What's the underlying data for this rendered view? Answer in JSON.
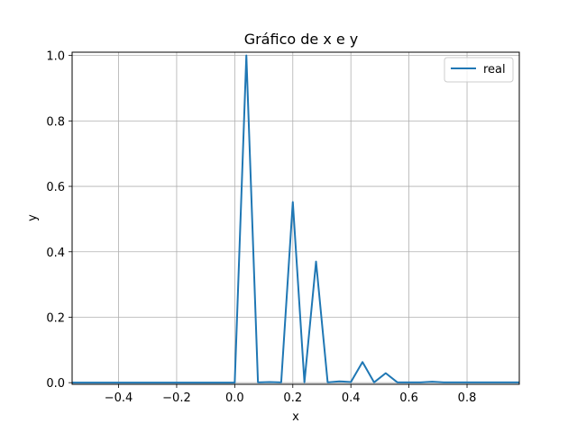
{
  "chart_data": {
    "type": "line",
    "title": "Gráfico de x e y",
    "xlabel": "x",
    "ylabel": "y",
    "xlim": [
      -0.56,
      0.98
    ],
    "ylim": [
      -0.005,
      1.01
    ],
    "x_ticks": [
      -0.4,
      -0.2,
      0.0,
      0.2,
      0.4,
      0.6,
      0.8
    ],
    "x_tick_labels": [
      "−0.4",
      "−0.2",
      "0.0",
      "0.2",
      "0.4",
      "0.6",
      "0.8"
    ],
    "y_ticks": [
      0.0,
      0.2,
      0.4,
      0.6,
      0.8,
      1.0
    ],
    "y_tick_labels": [
      "0.0",
      "0.2",
      "0.4",
      "0.6",
      "0.8",
      "1.0"
    ],
    "grid": true,
    "legend_position": "top-right",
    "series": [
      {
        "name": "real",
        "color": "#1f77b4",
        "x": [
          -0.56,
          -0.52,
          -0.48,
          -0.44,
          -0.4,
          -0.36,
          -0.32,
          -0.28,
          -0.24,
          -0.2,
          -0.16,
          -0.12,
          -0.08,
          -0.04,
          0.0,
          0.04,
          0.08,
          0.12,
          0.16,
          0.2,
          0.24,
          0.28,
          0.32,
          0.36,
          0.4,
          0.44,
          0.48,
          0.52,
          0.56,
          0.6,
          0.64,
          0.68,
          0.72,
          0.76,
          0.8,
          0.84,
          0.88,
          0.92,
          0.96,
          0.98
        ],
        "y": [
          0,
          0,
          0,
          0,
          0,
          0,
          0,
          0,
          0,
          0,
          0,
          0,
          0,
          0,
          0,
          1.0,
          0.001,
          0.002,
          0.001,
          0.552,
          0.001,
          0.37,
          0.001,
          0.004,
          0.002,
          0.063,
          0.001,
          0.029,
          0.001,
          0.001,
          0.001,
          0.003,
          0.001,
          0.001,
          0.001,
          0.001,
          0.001,
          0.001,
          0.001,
          0.001
        ]
      }
    ]
  }
}
